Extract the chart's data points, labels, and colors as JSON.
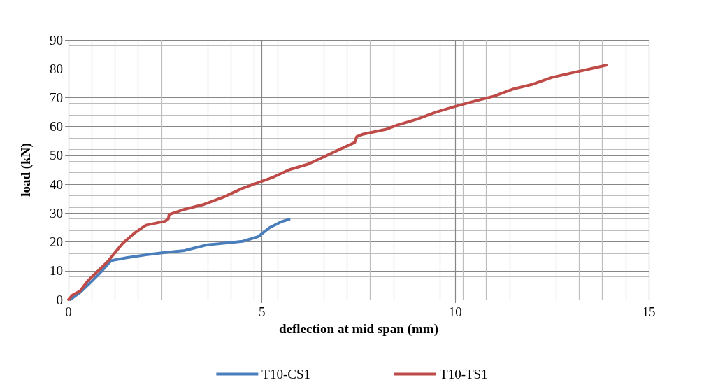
{
  "chart_data": {
    "type": "line",
    "xlabel": "deflection at mid span (mm)",
    "ylabel": "load (kN)",
    "xlim": [
      0,
      15
    ],
    "xticks": [
      0,
      5,
      10,
      15
    ],
    "ylim": [
      0,
      90
    ],
    "yticks": [
      0,
      10,
      20,
      30,
      40,
      50,
      60,
      70,
      80,
      90
    ],
    "grid": true,
    "legend": "bottom",
    "marker": "none",
    "line_style": "solid",
    "series": [
      {
        "name": "T10-CS1",
        "color": "#4a7ebb",
        "x": [
          0.05,
          0.3,
          0.5,
          0.8,
          1.1,
          1.5,
          2,
          2.5,
          3,
          3.3,
          3.6,
          4,
          4.5,
          4.9,
          5.2,
          5.5,
          5.7
        ],
        "values": [
          0,
          2.5,
          5,
          9,
          13.5,
          14.5,
          15.5,
          16.3,
          17,
          18,
          19,
          19.5,
          20.2,
          21.8,
          25,
          27,
          27.8
        ]
      },
      {
        "name": "T10-TS1",
        "color": "#be4b48",
        "x": [
          0,
          0.1,
          0.3,
          0.5,
          1,
          1.4,
          1.7,
          2,
          2.5,
          2.58,
          2.6,
          3,
          3.5,
          4,
          4.5,
          5,
          5.3,
          5.7,
          6.2,
          6.6,
          7,
          7.4,
          7.45,
          7.6,
          8.2,
          8.5,
          9,
          9.5,
          10,
          10.5,
          11,
          11.5,
          12,
          12.5,
          13,
          13.5,
          13.9
        ],
        "values": [
          0,
          1.5,
          3,
          6.5,
          13,
          19.5,
          23,
          25.8,
          27.2,
          28,
          29.5,
          31.3,
          33,
          35.5,
          38.6,
          41,
          42.5,
          45,
          47,
          49.5,
          52,
          54.5,
          56.5,
          57.3,
          59,
          60.5,
          62.5,
          65,
          67,
          68.8,
          70.5,
          73,
          74.6,
          77,
          78.5,
          80,
          81.2
        ]
      }
    ]
  }
}
